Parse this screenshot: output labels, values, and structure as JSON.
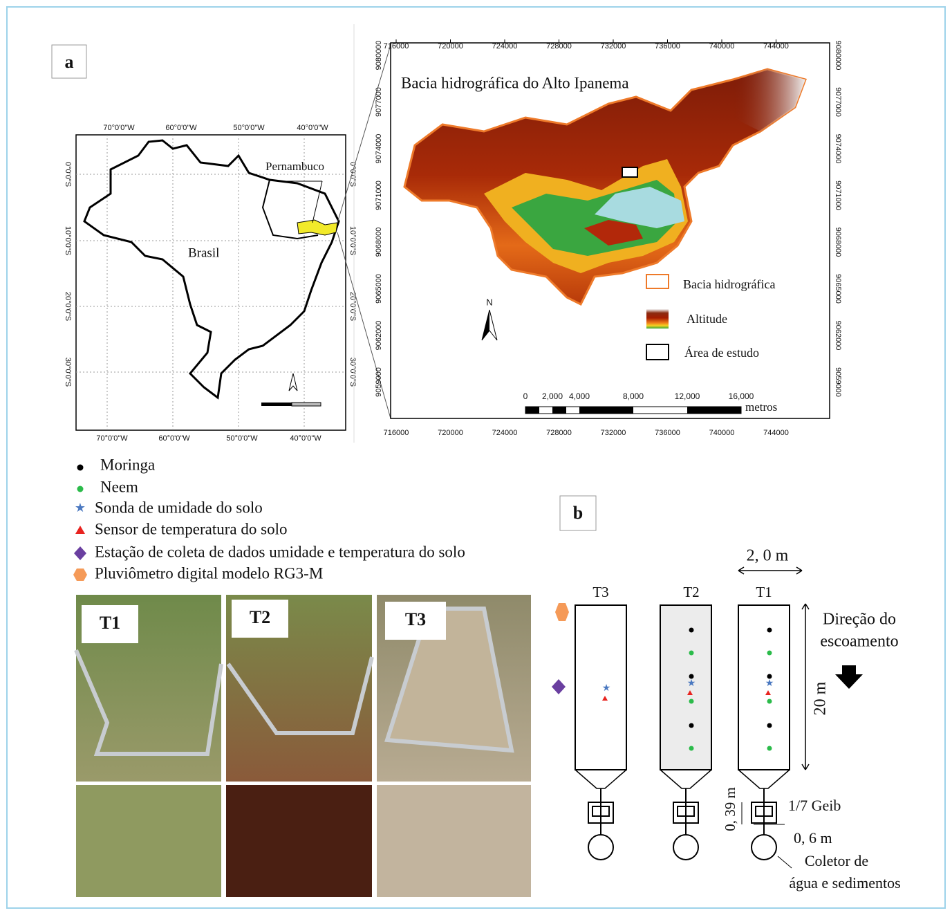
{
  "panel_a": {
    "label": "a",
    "brazil_map": {
      "x_labels": [
        "70°0'0\"W",
        "60°0'0\"W",
        "50°0'0\"W",
        "40°0'0\"W"
      ],
      "y_labels": [
        "0°0'0\"S",
        "10°0'0\"S",
        "20°0'0\"S",
        "30°0'0\"S"
      ],
      "country": "Brasil",
      "state": "Pernambuco"
    },
    "basin_map": {
      "title": "Bacia hidrográfica do Alto Ipanema",
      "x_labels": [
        "716000",
        "720000",
        "724000",
        "728000",
        "732000",
        "736000",
        "740000",
        "744000"
      ],
      "y_labels": [
        "9080000",
        "9077000",
        "9074000",
        "9071000",
        "9068000",
        "9065000",
        "9062000",
        "9059000"
      ],
      "north": "N",
      "legend": [
        "Bacia hidrográfica",
        "Altitude",
        "Área  de estudo"
      ],
      "scale_labels": [
        "0",
        "2,000",
        "4,000",
        "8,000",
        "12,000",
        "16,000"
      ],
      "scale_unit": "metros"
    }
  },
  "legend": [
    "Moringa",
    "Neem",
    "Sonda de umidade do solo",
    "Sensor de temperatura do solo",
    "Estação de coleta de dados umidade e temperatura do solo",
    "Pluviômetro digital modelo RG3-M"
  ],
  "photos": [
    "T1",
    "T2",
    "T3"
  ],
  "panel_b": {
    "label": "b",
    "plots": [
      "T3",
      "T2",
      "T1"
    ],
    "width": "2, 0 m",
    "length": "20 m",
    "flow": [
      "Direção do",
      "escoamento"
    ],
    "height": "0, 39 m",
    "flume": "1/7 Geib",
    "outlet": "0, 6 m",
    "collector": [
      "Coletor de",
      "água e sedimentos"
    ]
  }
}
